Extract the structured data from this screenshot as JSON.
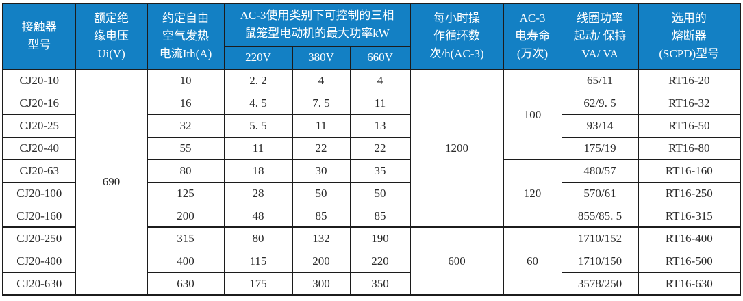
{
  "colors": {
    "header_bg": "#1380c4",
    "header_text": "#ffffff",
    "body_text": "#2b2b2b",
    "border": "#1c1c1c"
  },
  "header": {
    "model": "接触器\n型号",
    "rated_insulation_voltage": "额定绝\n缘电压\nUi(V)",
    "conventional_thermal_current": "约定自由\n空气发热\n电流Ith(A)",
    "ac3_max_power_group": "AC-3使用类别下可控制的三相\n鼠笼型电动机的最大功率kW",
    "v220": "220V",
    "v380": "380V",
    "v660": "660V",
    "operating_cycles": "每小时操\n作循环数\n次/h(AC-3)",
    "electrical_life": "AC-3\n电寿命\n(万次)",
    "coil_power": "线圈功率\n起动/ 保持\nVA/ VA",
    "fuse_type": "选用的\n熔断器\n(SCPD)型号"
  },
  "merged_cells": {
    "rated_insulation_voltage": "690",
    "cycles_rows_1_7": "1200",
    "cycles_rows_8_10": "600",
    "life_rows_1_4": "100",
    "life_rows_5_7": "120",
    "life_rows_8_10": "60"
  },
  "rows": [
    {
      "model": "CJ20-10",
      "ith": "10",
      "kw_220": "2. 2",
      "kw_380": "4",
      "kw_660": "4",
      "coil_va": "65/11",
      "fuse": "RT16-20"
    },
    {
      "model": "CJ20-16",
      "ith": "16",
      "kw_220": "4. 5",
      "kw_380": "7. 5",
      "kw_660": "11",
      "coil_va": "62/9. 5",
      "fuse": "RT16-32"
    },
    {
      "model": "CJ20-25",
      "ith": "32",
      "kw_220": "5. 5",
      "kw_380": "11",
      "kw_660": "13",
      "coil_va": "93/14",
      "fuse": "RT16-50"
    },
    {
      "model": "CJ20-40",
      "ith": "55",
      "kw_220": "11",
      "kw_380": "22",
      "kw_660": "22",
      "coil_va": "175/19",
      "fuse": "RT16-80"
    },
    {
      "model": "CJ20-63",
      "ith": "80",
      "kw_220": "18",
      "kw_380": "30",
      "kw_660": "35",
      "coil_va": "480/57",
      "fuse": "RT16-160"
    },
    {
      "model": "CJ20-100",
      "ith": "125",
      "kw_220": "28",
      "kw_380": "50",
      "kw_660": "50",
      "coil_va": "570/61",
      "fuse": "RT16-250"
    },
    {
      "model": "CJ20-160",
      "ith": "200",
      "kw_220": "48",
      "kw_380": "85",
      "kw_660": "85",
      "coil_va": "855/85. 5",
      "fuse": "RT16-315"
    },
    {
      "model": "CJ20-250",
      "ith": "315",
      "kw_220": "80",
      "kw_380": "132",
      "kw_660": "190",
      "coil_va": "1710/152",
      "fuse": "RT16-400"
    },
    {
      "model": "CJ20-400",
      "ith": "400",
      "kw_220": "115",
      "kw_380": "200",
      "kw_660": "220",
      "coil_va": "1710/150",
      "fuse": "RT16-500"
    },
    {
      "model": "CJ20-630",
      "ith": "630",
      "kw_220": "175",
      "kw_380": "300",
      "kw_660": "350",
      "coil_va": "3578/250",
      "fuse": "RT16-630"
    }
  ]
}
